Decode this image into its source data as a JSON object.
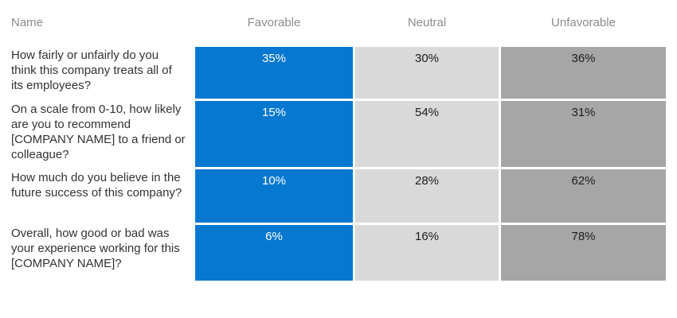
{
  "table": {
    "columns": [
      "Name",
      "Favorable",
      "Neutral",
      "Unfavorable"
    ],
    "rows": [
      {
        "name": "How fairly or unfairly do you think this company treats all of its employees?",
        "favorable": "35%",
        "neutral": "30%",
        "unfavorable": "36%"
      },
      {
        "name": "On a scale from 0-10, how likely are you to recommend [COMPANY NAME] to a friend or colleague?",
        "favorable": "15%",
        "neutral": "54%",
        "unfavorable": "31%"
      },
      {
        "name": "How much do you believe in the future success of this company?",
        "favorable": "10%",
        "neutral": "28%",
        "unfavorable": "62%"
      },
      {
        "name": "Overall, how good or bad was your experience working for this [COMPANY NAME]?",
        "favorable": "6%",
        "neutral": "16%",
        "unfavorable": "78%"
      }
    ]
  },
  "colors": {
    "favorable": "#0778d0",
    "neutral": "#d9d9d9",
    "unfavorable": "#a6a6a6",
    "header_text": "#8b8b8b",
    "question_text": "#323232",
    "value_text_on_gray": "#1c1c1c",
    "value_text_on_blue": "#ffffff"
  },
  "chart_data": {
    "type": "table",
    "title": "",
    "categories": [
      "Favorable",
      "Neutral",
      "Unfavorable"
    ],
    "units": "percent",
    "rows": [
      {
        "question": "How fairly or unfairly do you think this company treats all of its employees?",
        "values": [
          35,
          30,
          36
        ]
      },
      {
        "question": "On a scale from 0-10, how likely are you to recommend [COMPANY NAME] to a friend or colleague?",
        "values": [
          15,
          54,
          31
        ]
      },
      {
        "question": "How much do you believe in the future success of this company?",
        "values": [
          10,
          28,
          62
        ]
      },
      {
        "question": "Overall, how good or bad was your experience working for this [COMPANY NAME]?",
        "values": [
          6,
          16,
          78
        ]
      }
    ],
    "layout": {
      "grid": false,
      "legend": "none",
      "value_labels": "top-center of each cell"
    }
  }
}
